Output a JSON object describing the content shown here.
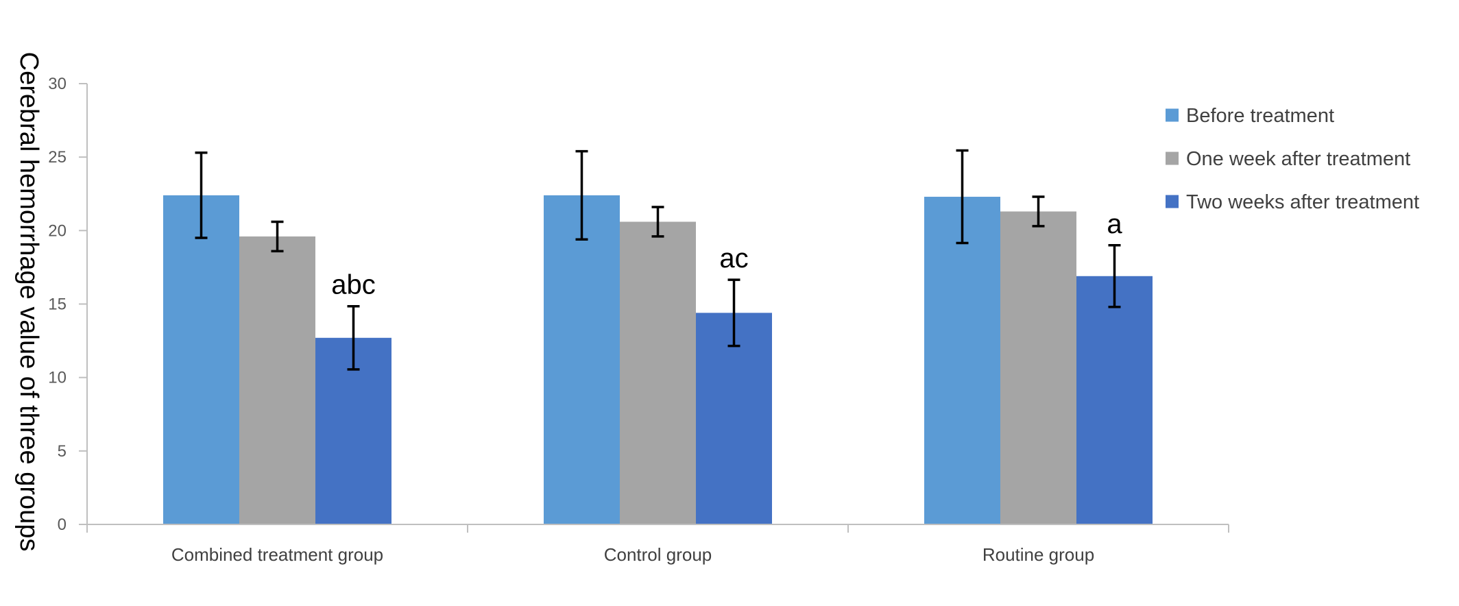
{
  "chart_data": {
    "type": "bar",
    "title": "",
    "xlabel": "",
    "ylabel": "Cerebral hemorrhage value of three groups",
    "ylim": [
      0,
      30
    ],
    "yticks": [
      0,
      5,
      10,
      15,
      20,
      25,
      30
    ],
    "grid": false,
    "legend_position": "right",
    "categories": [
      "Combined treatment group",
      "Control group",
      "Routine group"
    ],
    "series": [
      {
        "name": "Before treatment",
        "color": "#5B9BD5",
        "values": [
          22.4,
          22.4,
          22.3
        ],
        "error": [
          2.9,
          3.0,
          3.15
        ]
      },
      {
        "name": "One week after treatment",
        "color": "#A5A5A5",
        "values": [
          19.6,
          20.6,
          21.3
        ],
        "error": [
          1.0,
          1.0,
          1.0
        ]
      },
      {
        "name": "Two weeks after treatment",
        "color": "#4472C4",
        "values": [
          12.7,
          14.4,
          16.9
        ],
        "error": [
          2.15,
          2.25,
          2.1
        ]
      }
    ],
    "annotations": [
      "abc",
      "ac",
      "a"
    ]
  }
}
